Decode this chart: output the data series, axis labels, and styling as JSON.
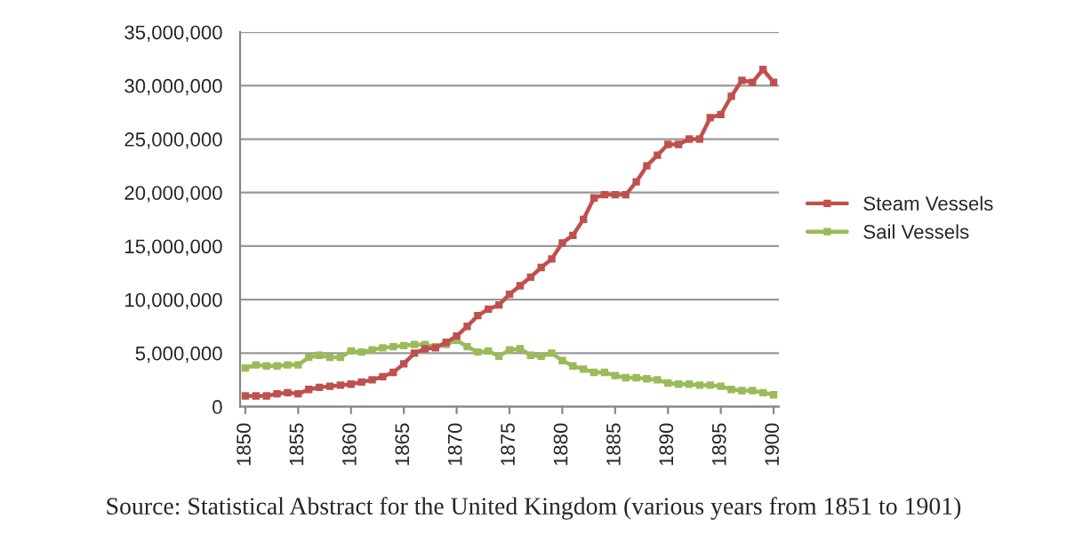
{
  "chart_data": {
    "type": "line",
    "x": [
      1850,
      1851,
      1852,
      1853,
      1854,
      1855,
      1856,
      1857,
      1858,
      1859,
      1860,
      1861,
      1862,
      1863,
      1864,
      1865,
      1866,
      1867,
      1868,
      1869,
      1870,
      1871,
      1872,
      1873,
      1874,
      1875,
      1876,
      1877,
      1878,
      1879,
      1880,
      1881,
      1882,
      1883,
      1884,
      1885,
      1886,
      1887,
      1888,
      1889,
      1890,
      1891,
      1892,
      1893,
      1894,
      1895,
      1896,
      1897,
      1898,
      1899,
      1900
    ],
    "series": [
      {
        "name": "Steam Vessels",
        "color": "#c0504d",
        "values": [
          1000000,
          1000000,
          1000000,
          1200000,
          1300000,
          1200000,
          1600000,
          1800000,
          1900000,
          2000000,
          2100000,
          2300000,
          2500000,
          2800000,
          3200000,
          4000000,
          5000000,
          5400000,
          5500000,
          6000000,
          6600000,
          7500000,
          8500000,
          9100000,
          9500000,
          10500000,
          11300000,
          12100000,
          13000000,
          13800000,
          15300000,
          16000000,
          17500000,
          19500000,
          19800000,
          19800000,
          19800000,
          21000000,
          22500000,
          23500000,
          24500000,
          24500000,
          25000000,
          25000000,
          27000000,
          27300000,
          29000000,
          30500000,
          30300000,
          31500000,
          30300000
        ]
      },
      {
        "name": "Sail Vessels",
        "color": "#9bbb59",
        "values": [
          3600000,
          3900000,
          3800000,
          3800000,
          3900000,
          3900000,
          4600000,
          4800000,
          4600000,
          4600000,
          5200000,
          5100000,
          5300000,
          5500000,
          5600000,
          5700000,
          5800000,
          5800000,
          5600000,
          5800000,
          6200000,
          5600000,
          5100000,
          5200000,
          4700000,
          5300000,
          5400000,
          4800000,
          4700000,
          5000000,
          4300000,
          3800000,
          3500000,
          3200000,
          3200000,
          2900000,
          2700000,
          2700000,
          2600000,
          2500000,
          2200000,
          2100000,
          2100000,
          2000000,
          2000000,
          1900000,
          1600000,
          1500000,
          1500000,
          1300000,
          1100000
        ]
      }
    ],
    "xlim": [
      1849.5,
      1900.5
    ],
    "xticks": [
      1850,
      1855,
      1860,
      1865,
      1870,
      1875,
      1880,
      1885,
      1890,
      1895,
      1900
    ],
    "ylim": [
      0,
      35000000
    ],
    "yticks": [
      {
        "value": 0,
        "label": "0"
      },
      {
        "value": 5000000,
        "label": "5,000,000"
      },
      {
        "value": 10000000,
        "label": "10,000,000"
      },
      {
        "value": 15000000,
        "label": "15,000,000"
      },
      {
        "value": 20000000,
        "label": "20,000,000"
      },
      {
        "value": 25000000,
        "label": "25,000,000"
      },
      {
        "value": 30000000,
        "label": "30,000,000"
      },
      {
        "value": 35000000,
        "label": "35,000,000"
      }
    ],
    "grid": "y",
    "legend": "right",
    "marker": "square",
    "line_style": "solid",
    "annotations": [
      "Source: Statistical Abstract for the United Kingdom (various years from 1851 to 1901)"
    ]
  }
}
